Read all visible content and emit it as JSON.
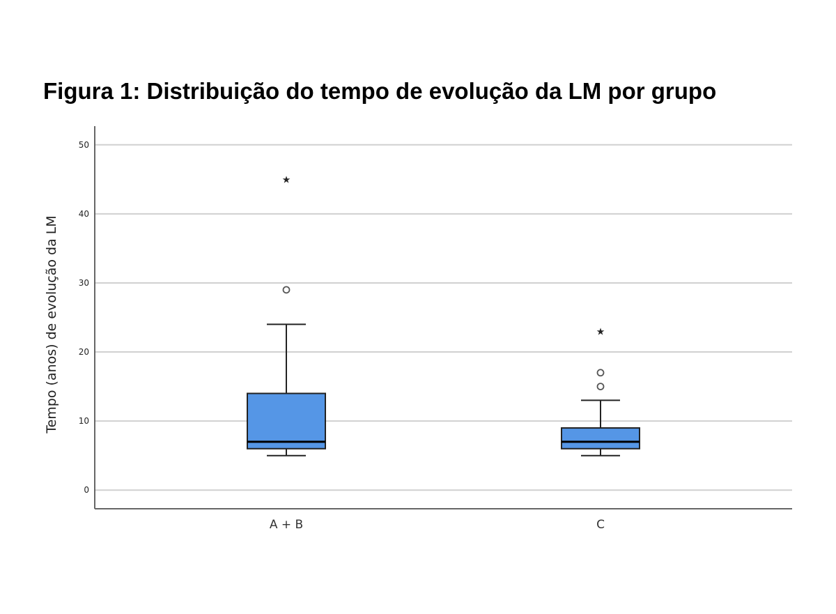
{
  "chart_data": {
    "type": "boxplot",
    "title": "Figura 1: Distribuição do tempo de evolução da LM por grupo",
    "xlabel": "",
    "ylabel": "Tempo (anos) de evolução da LM",
    "ylim": [
      -2.7,
      52.7
    ],
    "yticks": [
      0,
      10,
      20,
      30,
      40,
      50
    ],
    "grid": true,
    "categories": [
      "A + B",
      "C"
    ],
    "colors": {
      "box_fill": "#5596e6",
      "box_edge": "#222222",
      "grid": "#d0d0d0",
      "axis": "#666666"
    },
    "boxes": [
      {
        "category": "A + B",
        "whisker_low": 5,
        "q1": 6,
        "median": 7,
        "q3": 14,
        "whisker_high": 24,
        "outliers": [
          29
        ],
        "extremes": [
          45
        ]
      },
      {
        "category": "C",
        "whisker_low": 5,
        "q1": 6,
        "median": 7,
        "q3": 9,
        "whisker_high": 13,
        "outliers": [
          15,
          17
        ],
        "extremes": [
          23
        ]
      }
    ]
  }
}
